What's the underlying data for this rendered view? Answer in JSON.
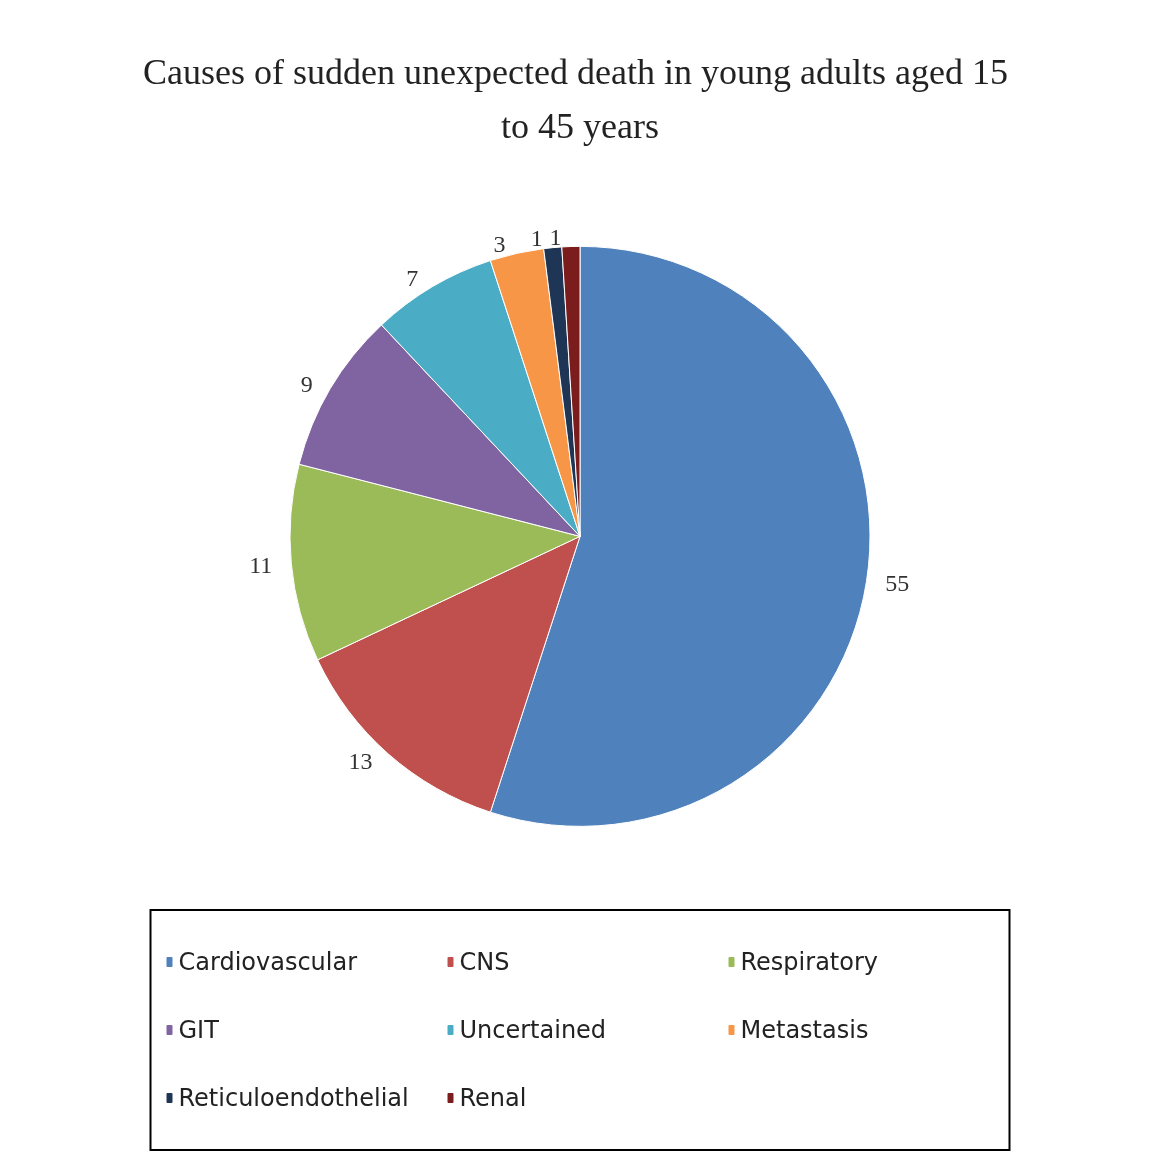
{
  "chart_data": {
    "type": "pie",
    "title": "Causes of sudden unexpected death in young adults aged 15 to 45 years",
    "categories": [
      "Cardiovascular",
      "CNS",
      "Respiratory",
      "GIT",
      "Uncertained",
      "Metastasis",
      "Reticuloendothelial",
      "Renal"
    ],
    "values": [
      55,
      13,
      11,
      9,
      7,
      3,
      1,
      1
    ],
    "colors": [
      "#4f81bd",
      "#c0504d",
      "#9bbb59",
      "#8064a2",
      "#4bacc6",
      "#f79646",
      "#1f3555",
      "#7b1d1d"
    ],
    "data_labels": true,
    "legend": "bottom"
  }
}
